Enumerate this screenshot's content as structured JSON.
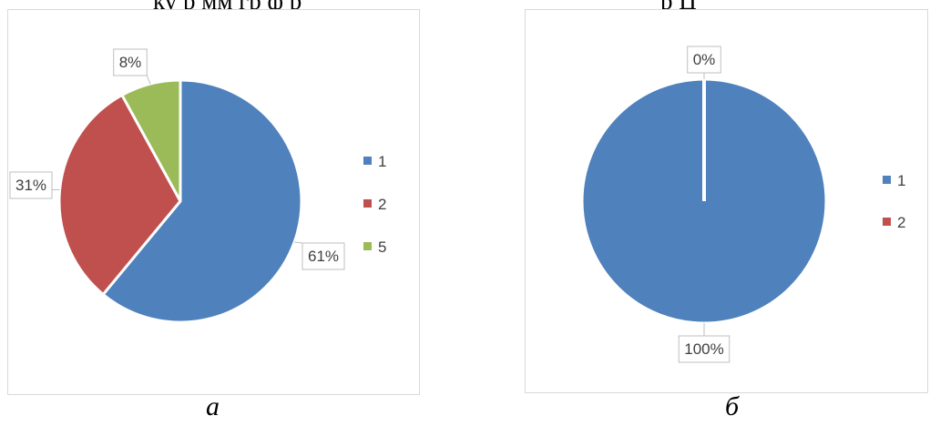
{
  "top_text": {
    "left": "ку      р          мм    гр ф              р",
    "right": "р     Ц"
  },
  "chart_data": [
    {
      "type": "pie",
      "caption": "а",
      "slices": [
        {
          "label": "1",
          "value": 61,
          "text": "61%",
          "color": "#4f81bd"
        },
        {
          "label": "2",
          "value": 31,
          "text": "31%",
          "color": "#c0504d"
        },
        {
          "label": "5",
          "value": 8,
          "text": "8%",
          "color": "#9bbb59"
        }
      ],
      "legend": {
        "placement": "right",
        "entries": [
          "1",
          "2",
          "5"
        ]
      }
    },
    {
      "type": "pie",
      "caption": "б",
      "slices": [
        {
          "label": "1",
          "value": 100,
          "text": "100%",
          "color": "#4f81bd"
        },
        {
          "label": "2",
          "value": 0,
          "text": "0%",
          "color": "#c0504d"
        }
      ],
      "legend": {
        "placement": "right",
        "entries": [
          "1",
          "2"
        ]
      }
    }
  ]
}
